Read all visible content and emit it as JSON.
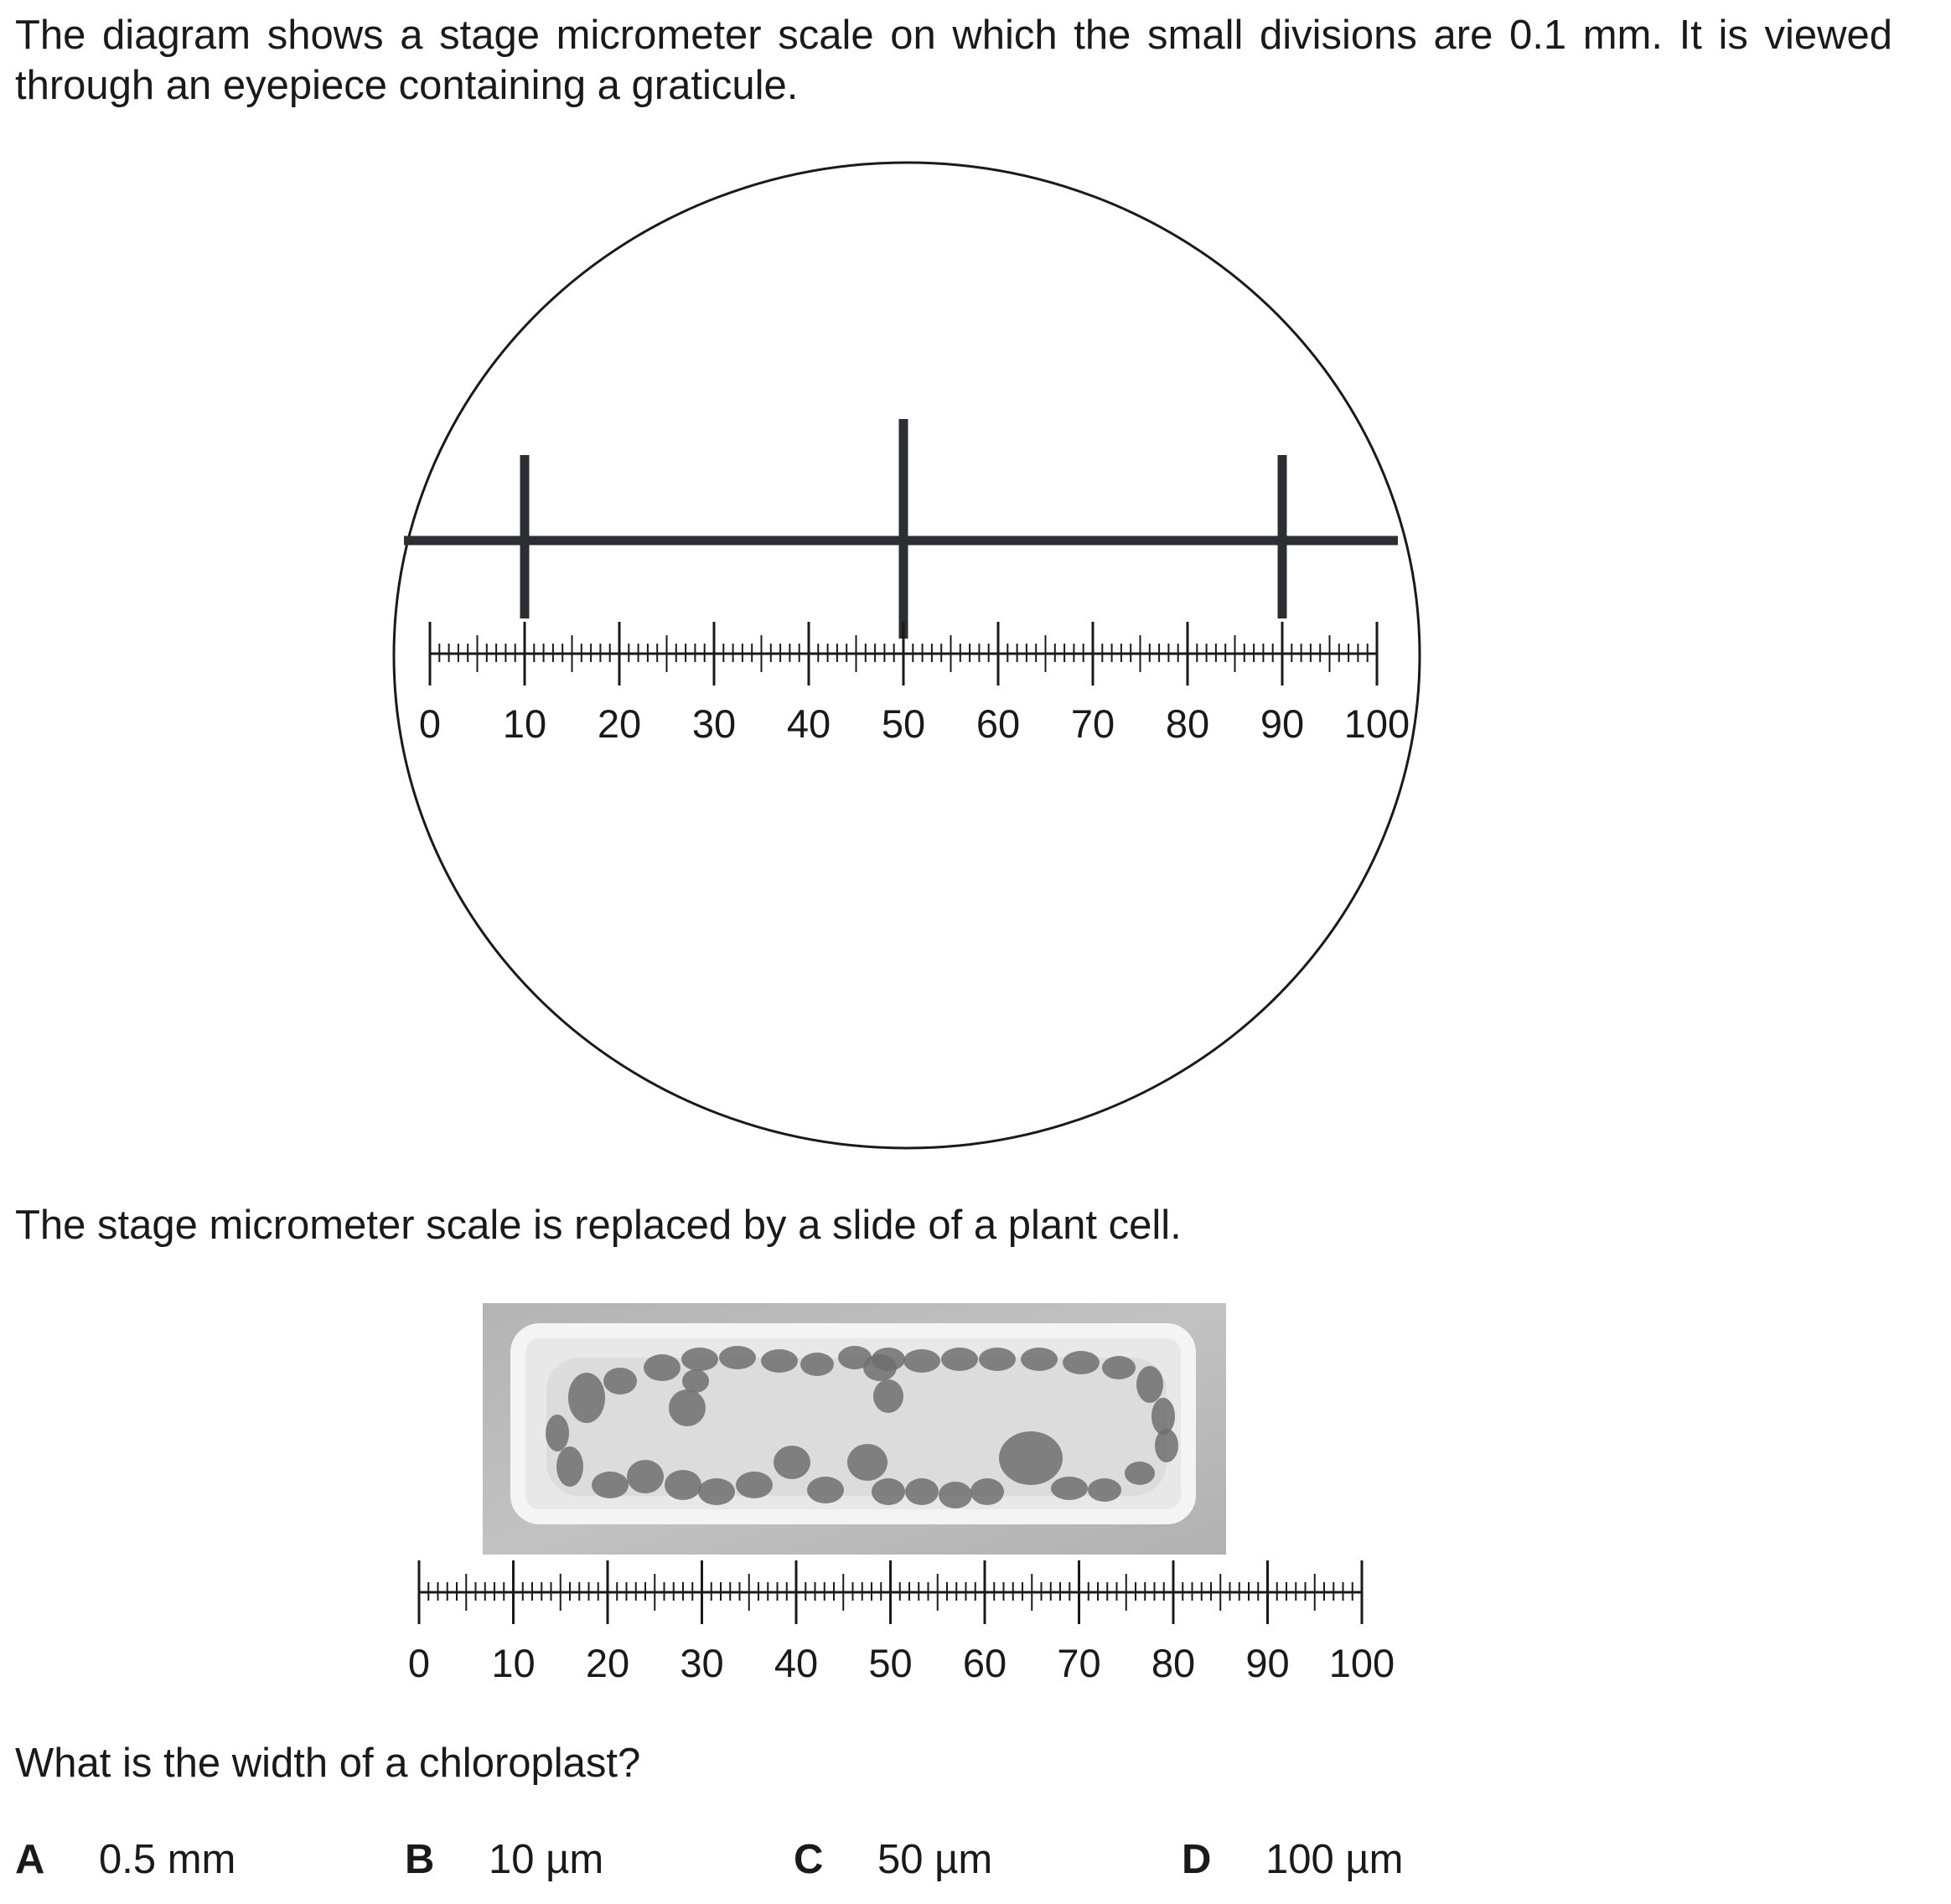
{
  "intro_text": "The diagram shows a stage micrometer scale on which the small divisions are 0.1 mm. It is viewed through an eyepiece containing a graticule.",
  "diagram1": {
    "graticule_marks": [
      10,
      50,
      90
    ],
    "scale_labels": [
      "0",
      "10",
      "20",
      "30",
      "40",
      "50",
      "60",
      "70",
      "80",
      "90",
      "100"
    ]
  },
  "replaced_text": "The stage micrometer scale is replaced by a slide of a plant cell.",
  "diagram2": {
    "scale_labels": [
      "0",
      "10",
      "20",
      "30",
      "40",
      "50",
      "60",
      "70",
      "80",
      "90",
      "100"
    ]
  },
  "question": "What is the width of a chloroplast?",
  "options": [
    {
      "letter": "A",
      "value": "0.5 mm"
    },
    {
      "letter": "B",
      "value": "10 µm"
    },
    {
      "letter": "C",
      "value": "50 µm"
    },
    {
      "letter": "D",
      "value": "100 µm"
    }
  ],
  "colors": {
    "ink": "#1a1a1a",
    "graticule": "#2b2f33",
    "cell_bg": "#d6d6d6",
    "chloroplast": "#6f6f6f"
  }
}
